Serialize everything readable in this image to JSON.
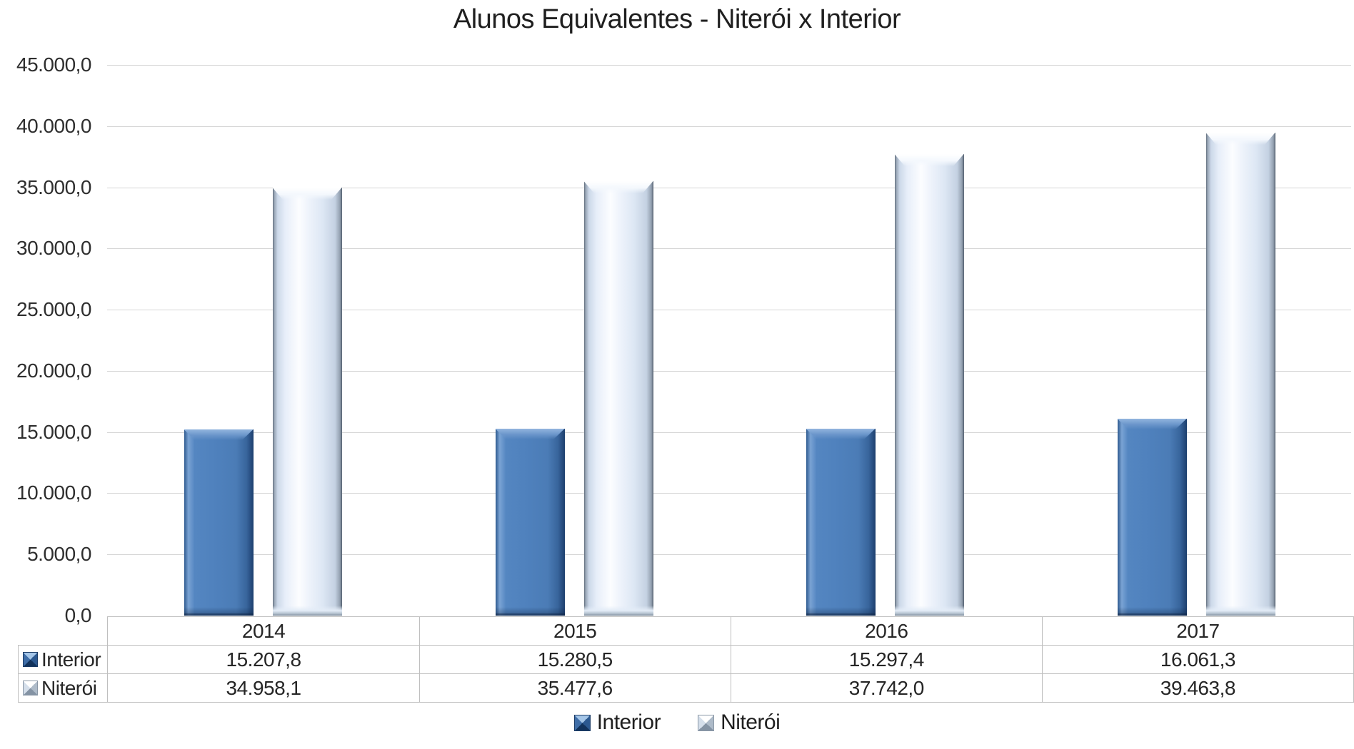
{
  "title": "Alunos Equivalentes - Niterói x Interior",
  "chart_data": {
    "type": "bar",
    "title": "Alunos Equivalentes - Niterói x Interior",
    "categories": [
      "2014",
      "2015",
      "2016",
      "2017"
    ],
    "series": [
      {
        "name": "Interior",
        "color": "#4F81BD",
        "values": [
          15207.8,
          15280.5,
          15297.4,
          16061.3
        ],
        "value_labels": [
          "15.207,8",
          "15.280,5",
          "15.297,4",
          "16.061,3"
        ]
      },
      {
        "name": "Niterói",
        "color": "#DCE6F2",
        "values": [
          34958.1,
          35477.6,
          37742.0,
          39463.8
        ],
        "value_labels": [
          "34.958,1",
          "35.477,6",
          "37.742,0",
          "39.463,8"
        ]
      }
    ],
    "ylim": [
      0,
      45000
    ],
    "ytick_step": 5000,
    "ytick_labels": [
      "45.000,0",
      "40.000,0",
      "35.000,0",
      "30.000,0",
      "25.000,0",
      "20.000,0",
      "15.000,0",
      "10.000,0",
      "5.000,0",
      "0,0"
    ],
    "xlabel": "",
    "ylabel": "",
    "grid": true,
    "legend_position": "bottom",
    "legend_items": [
      "Interior",
      "Niterói"
    ],
    "data_table_shown": true,
    "gridline_color": "#d6d6d6",
    "table_border_color": "#bfbfbf"
  }
}
